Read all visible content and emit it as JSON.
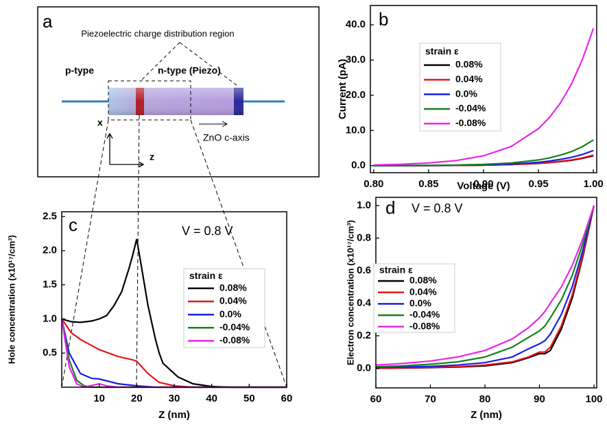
{
  "panel_a": {
    "label": "a",
    "title": "Piezoelectric charge distribution region",
    "p_label": "p-type",
    "n_label": "n-type (Piezo)",
    "x_axis": "x",
    "z_axis": "z",
    "c_axis": "ZnO c-axis"
  },
  "chart_data": [
    {
      "type": "line",
      "panel_label": "b",
      "xlabel": "Voltage (V)",
      "ylabel": "Current (pA)",
      "legend_title": "strain ε",
      "xlim": [
        0.797,
        1.003
      ],
      "ylim": [
        -2,
        45.5
      ],
      "xticks": [
        {
          "value": 0.8,
          "label": "0.80"
        },
        {
          "value": 0.85,
          "label": "0.85"
        },
        {
          "value": 0.9,
          "label": "0.90"
        },
        {
          "value": 0.95,
          "label": "0.95"
        },
        {
          "value": 1,
          "label": "1.00"
        }
      ],
      "yticks": [
        {
          "value": 0,
          "label": "0.0"
        },
        {
          "value": 10,
          "label": "10.0"
        },
        {
          "value": 20,
          "label": "20.0"
        },
        {
          "value": 30,
          "label": "30.0"
        },
        {
          "value": 40,
          "label": "40.0"
        }
      ],
      "series": [
        {
          "name": "0.08%",
          "color": "#000000",
          "x": [
            0.8,
            0.825,
            0.85,
            0.875,
            0.9,
            0.925,
            0.95,
            0.96,
            0.97,
            0.98,
            0.99,
            1.0
          ],
          "values": [
            0.01,
            0.02,
            0.03,
            0.07,
            0.14,
            0.29,
            0.63,
            0.85,
            1.15,
            1.53,
            2.07,
            2.8
          ]
        },
        {
          "name": "0.04%",
          "color": "#e8141c",
          "x": [
            0.8,
            0.825,
            0.85,
            0.875,
            0.9,
            0.925,
            0.95,
            0.96,
            0.97,
            0.98,
            0.99,
            1.0
          ],
          "values": [
            0.01,
            0.02,
            0.03,
            0.07,
            0.15,
            0.32,
            0.67,
            0.9,
            1.23,
            1.64,
            2.2,
            3.0
          ]
        },
        {
          "name": "0.0%",
          "color": "#1520e0",
          "x": [
            0.8,
            0.825,
            0.85,
            0.875,
            0.9,
            0.925,
            0.95,
            0.96,
            0.97,
            0.98,
            0.99,
            1.0
          ],
          "values": [
            0.01,
            0.02,
            0.05,
            0.1,
            0.21,
            0.45,
            0.96,
            1.3,
            1.77,
            2.36,
            3.18,
            4.3
          ]
        },
        {
          "name": "-0.04%",
          "color": "#14801c",
          "x": [
            0.8,
            0.825,
            0.85,
            0.875,
            0.9,
            0.925,
            0.95,
            0.96,
            0.97,
            0.98,
            0.99,
            1.0
          ],
          "values": [
            0.02,
            0.04,
            0.08,
            0.17,
            0.36,
            0.77,
            1.63,
            2.2,
            3.0,
            4.0,
            5.4,
            7.3
          ]
        },
        {
          "name": "-0.08%",
          "color": "#e825e8",
          "x": [
            0.8,
            0.825,
            0.85,
            0.875,
            0.9,
            0.925,
            0.95,
            0.96,
            0.97,
            0.98,
            0.99,
            1.0
          ],
          "values": [
            0.2,
            0.39,
            0.75,
            1.45,
            2.8,
            5.42,
            10.5,
            13.7,
            17.8,
            23.2,
            30.2,
            39.0
          ]
        }
      ]
    },
    {
      "type": "line",
      "panel_label": "c",
      "xlabel": "Z (nm)",
      "ylabel": "Hole concentration (x10¹⁷/cm³)",
      "annotation": "V = 0.8 V",
      "legend_title": "strain ε",
      "xlim": [
        0,
        60
      ],
      "ylim": [
        0,
        2.57
      ],
      "xticks": [
        10,
        20,
        30,
        40,
        50,
        60
      ],
      "yticks": [
        0.5,
        {
          "value": 1,
          "label": "1.0"
        },
        1.5,
        {
          "value": 2,
          "label": "2.0"
        },
        2.5
      ],
      "series": [
        {
          "name": "0.08%",
          "color": "#000000",
          "x": [
            0,
            2.5,
            5,
            8,
            10,
            12,
            14,
            16,
            18,
            19,
            20,
            21,
            23,
            25,
            26,
            27,
            28,
            31,
            35,
            40,
            45,
            60
          ],
          "values": [
            1.0,
            0.96,
            0.95,
            0.97,
            1.0,
            1.05,
            1.2,
            1.4,
            1.75,
            1.95,
            2.17,
            1.85,
            1.2,
            0.7,
            0.5,
            0.35,
            0.3,
            0.15,
            0.05,
            0.01,
            0,
            0
          ]
        },
        {
          "name": "0.04%",
          "color": "#e8141c",
          "x": [
            0,
            2.5,
            5,
            10,
            15,
            19,
            20,
            23,
            26,
            30,
            35,
            60
          ],
          "values": [
            1.0,
            0.8,
            0.7,
            0.55,
            0.45,
            0.4,
            0.38,
            0.2,
            0.07,
            0.02,
            0,
            0
          ]
        },
        {
          "name": "0.0%",
          "color": "#1520e0",
          "x": [
            0,
            2,
            5,
            8,
            10,
            15,
            20,
            25,
            60
          ],
          "values": [
            1.0,
            0.5,
            0.2,
            0.13,
            0.12,
            0.05,
            0.02,
            0,
            0
          ]
        },
        {
          "name": "-0.04%",
          "color": "#14801c",
          "x": [
            0,
            2,
            4,
            6,
            8,
            60
          ],
          "values": [
            1.0,
            0.4,
            0.1,
            0.02,
            0,
            0
          ]
        },
        {
          "name": "-0.08%",
          "color": "#e825e8",
          "x": [
            0,
            2,
            4,
            6,
            10,
            12,
            15,
            60
          ],
          "values": [
            1.0,
            0.3,
            0.05,
            0,
            0.05,
            0.02,
            0,
            0
          ]
        }
      ]
    },
    {
      "type": "line",
      "panel_label": "d",
      "xlabel": "Z (nm)",
      "ylabel": "Electron concentration (x10¹⁷/cm³)",
      "annotation": "V = 0.8 V",
      "legend_title": "strain ε",
      "xlim": [
        60,
        100.5
      ],
      "ylim": [
        -0.12,
        1.05
      ],
      "xticks": [
        60,
        70,
        80,
        90,
        100
      ],
      "yticks": [
        {
          "value": 0,
          "label": "0.0"
        },
        0.2,
        0.4,
        0.6,
        0.8,
        {
          "value": 1,
          "label": "1.0"
        }
      ],
      "series": [
        {
          "name": "0.08%",
          "color": "#000000",
          "x": [
            60,
            65,
            70,
            75,
            80,
            85,
            88,
            90,
            91,
            92,
            94,
            96,
            98,
            100
          ],
          "values": [
            0,
            0.002,
            0.004,
            0.008,
            0.015,
            0.035,
            0.065,
            0.09,
            0.09,
            0.11,
            0.24,
            0.43,
            0.69,
            1.0
          ]
        },
        {
          "name": "0.04%",
          "color": "#e8141c",
          "x": [
            60,
            65,
            70,
            75,
            80,
            85,
            88,
            90,
            91,
            92,
            94,
            96,
            98,
            100
          ],
          "values": [
            0,
            0.003,
            0.006,
            0.01,
            0.02,
            0.04,
            0.07,
            0.1,
            0.1,
            0.13,
            0.26,
            0.45,
            0.7,
            1.0
          ]
        },
        {
          "name": "0.0%",
          "color": "#1520e0",
          "x": [
            60,
            65,
            70,
            75,
            80,
            85,
            88,
            90,
            91,
            92,
            94,
            96,
            98,
            100
          ],
          "values": [
            0.005,
            0.008,
            0.012,
            0.02,
            0.035,
            0.07,
            0.12,
            0.15,
            0.17,
            0.21,
            0.33,
            0.5,
            0.73,
            1.0
          ]
        },
        {
          "name": "-0.04%",
          "color": "#14801c",
          "x": [
            60,
            65,
            70,
            75,
            80,
            85,
            88,
            90,
            91,
            92,
            94,
            96,
            98,
            100
          ],
          "values": [
            0.01,
            0.015,
            0.025,
            0.04,
            0.07,
            0.13,
            0.19,
            0.23,
            0.26,
            0.31,
            0.42,
            0.57,
            0.77,
            1.0
          ]
        },
        {
          "name": "-0.08%",
          "color": "#e825e8",
          "x": [
            60,
            65,
            70,
            75,
            80,
            85,
            88,
            90,
            91,
            92,
            94,
            96,
            98,
            100
          ],
          "values": [
            0.02,
            0.03,
            0.045,
            0.07,
            0.11,
            0.18,
            0.25,
            0.31,
            0.35,
            0.4,
            0.5,
            0.63,
            0.8,
            1.0
          ]
        }
      ]
    }
  ]
}
